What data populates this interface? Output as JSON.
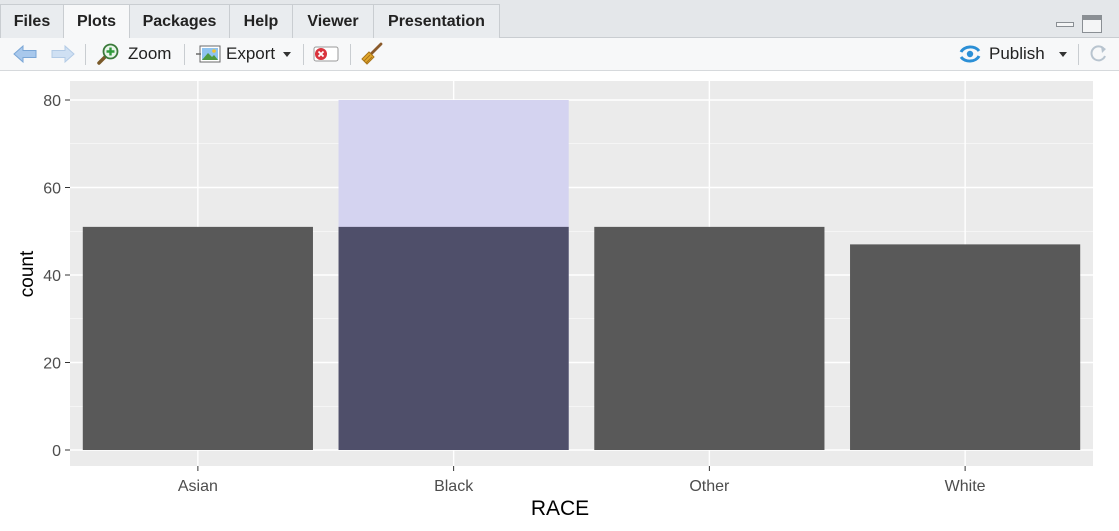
{
  "tabs": [
    {
      "label": "Files"
    },
    {
      "label": "Plots"
    },
    {
      "label": "Packages"
    },
    {
      "label": "Help"
    },
    {
      "label": "Viewer"
    },
    {
      "label": "Presentation"
    }
  ],
  "active_tab": "Plots",
  "toolbar": {
    "zoom_label": "Zoom",
    "export_label": "Export",
    "publish_label": "Publish"
  },
  "colors": {
    "panel_bg": "#ebebeb",
    "bar": "#595959",
    "highlight_bar": "#d4d3f0",
    "highlight_overlap": "#4f4f6a",
    "publish_icon": "#2b8fd6",
    "remove_icon": "#d9343d"
  },
  "chart_data": {
    "type": "bar",
    "categories": [
      "Asian",
      "Black",
      "Other",
      "White"
    ],
    "values": [
      51,
      51,
      51,
      47
    ],
    "highlight": {
      "category": "Black",
      "value": 80
    },
    "xlabel": "RACE",
    "ylabel": "count",
    "ylim": [
      0,
      85
    ],
    "yticks": [
      0,
      20,
      40,
      60,
      80
    ],
    "grid": true,
    "legend": "none"
  }
}
